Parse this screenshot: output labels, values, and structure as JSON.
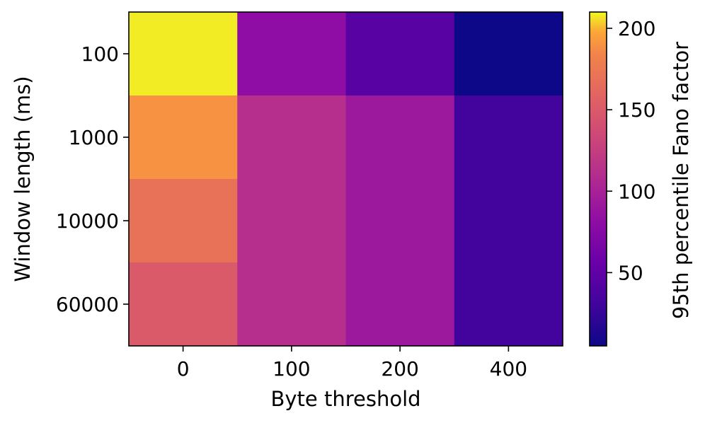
{
  "chart_data": {
    "type": "heatmap",
    "title": "",
    "xlabel": "Byte threshold",
    "ylabel": "Window length (ms)",
    "colorbar_label": "95th percentile Fano factor",
    "colormap": "plasma",
    "x_categories": [
      "0",
      "100",
      "200",
      "400"
    ],
    "y_categories": [
      "100",
      "1000",
      "10000",
      "60000"
    ],
    "values": [
      [
        208,
        82,
        45,
        5
      ],
      [
        190,
        112,
        92,
        32
      ],
      [
        170,
        112,
        92,
        32
      ],
      [
        150,
        112,
        92,
        32
      ]
    ],
    "color_range": [
      5,
      210
    ],
    "colorbar_ticks": [
      "50",
      "100",
      "150",
      "200"
    ],
    "colorbar_tick_values": [
      50,
      100,
      150,
      200
    ],
    "grid": false
  }
}
